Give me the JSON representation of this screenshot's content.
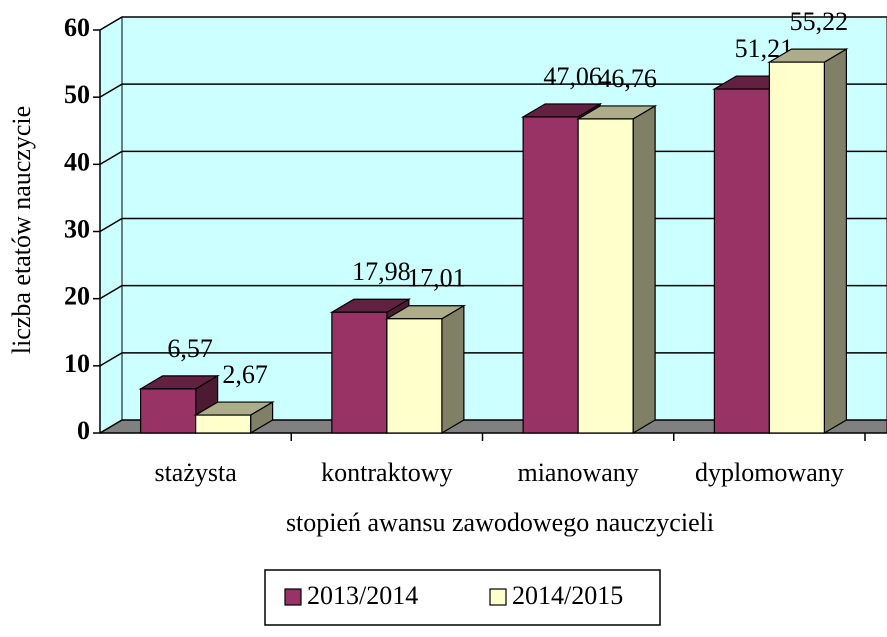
{
  "chart_data": {
    "type": "bar",
    "categories": [
      "stażysta",
      "kontraktowy",
      "mianowany",
      "dyplomowany"
    ],
    "series": [
      {
        "name": "2013/2014",
        "color": "#993366",
        "values": [
          6.57,
          17.98,
          47.06,
          51.21
        ],
        "value_labels": [
          "6,57",
          "17,98",
          "47,06",
          "51,21"
        ]
      },
      {
        "name": "2014/2015",
        "color": "#ffffcc",
        "values": [
          2.67,
          17.01,
          46.76,
          55.22
        ],
        "value_labels": [
          "2,67",
          "17,01",
          "46,76",
          "55,22"
        ]
      }
    ],
    "x_label": "stopień awansu zawodowego nauczycieli",
    "y_label": "liczba etatów nauczycie",
    "ylim": [
      0,
      60
    ],
    "yticks": [
      0,
      10,
      20,
      30,
      40,
      50,
      60
    ],
    "grid": true,
    "legend": "bottom"
  }
}
